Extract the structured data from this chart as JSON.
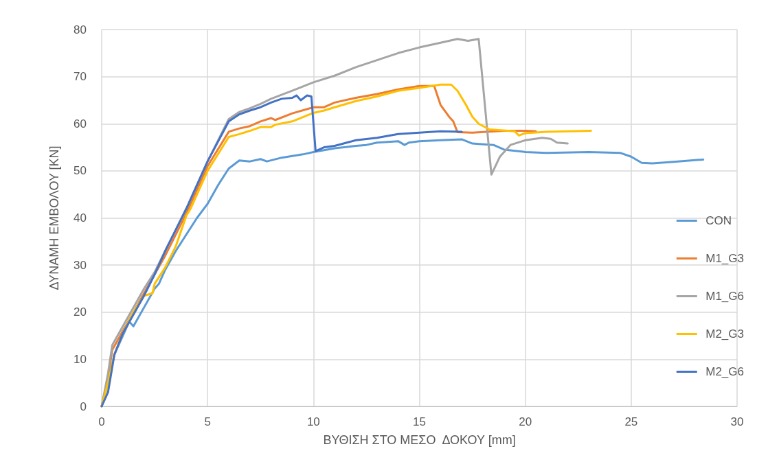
{
  "chart_data": {
    "type": "line",
    "xlabel": "ΒΥΘΙΣΗ ΣΤΟ ΜΕΣΟ  ΔΟΚΟΥ [mm]",
    "ylabel": "ΔΥΝΑΜΗ ΕΜΒΟΛΟΥ [KN]",
    "xlim": [
      0,
      30
    ],
    "xticks": [
      0,
      5,
      10,
      15,
      20,
      25,
      30
    ],
    "ylim": [
      0,
      80
    ],
    "yticks": [
      0,
      10,
      20,
      30,
      40,
      50,
      60,
      70,
      80
    ],
    "grid": true,
    "legend": "right",
    "marker": "none",
    "line_style": "solid",
    "series": [
      {
        "name": "CON",
        "color": "#5b9bd5",
        "x": [
          0,
          0.3,
          0.6,
          1,
          1.3,
          1.5,
          2,
          2.5,
          2.7,
          3,
          3.5,
          4,
          4.5,
          5,
          5.5,
          6,
          6.5,
          7,
          7.5,
          7.8,
          8.5,
          9.5,
          10,
          11,
          12,
          12.5,
          13,
          14,
          14.3,
          14.5,
          15,
          16,
          17,
          17.5,
          18.5,
          19,
          20,
          21,
          23,
          24.5,
          25,
          25.5,
          26,
          27,
          28.4
        ],
        "values": [
          0,
          5,
          11,
          15,
          18,
          17,
          21,
          25,
          26,
          29,
          33,
          36.5,
          40,
          43,
          47,
          50.5,
          52.2,
          52,
          52.5,
          52,
          52.8,
          53.5,
          54,
          54.8,
          55.3,
          55.5,
          56,
          56.3,
          55.5,
          56,
          56.3,
          56.5,
          56.7,
          55.8,
          55.5,
          54.5,
          54,
          53.8,
          54,
          53.8,
          53,
          51.7,
          51.6,
          51.9,
          52.4
        ]
      },
      {
        "name": "M1_G3",
        "color": "#ed7d31",
        "x": [
          0,
          0.3,
          0.5,
          1,
          1.5,
          2,
          2.5,
          3,
          4,
          5,
          6,
          6.5,
          7,
          7.5,
          8,
          8.2,
          9,
          10,
          10.5,
          11,
          12,
          13,
          14,
          15,
          15.7,
          16,
          16.4,
          16.6,
          16.8,
          17.5,
          19,
          20,
          20.5
        ],
        "values": [
          0,
          6,
          12,
          16,
          20,
          24,
          28,
          32,
          41,
          51,
          58.3,
          59,
          59.5,
          60.5,
          61.2,
          60.8,
          62.2,
          63.5,
          63.5,
          64.5,
          65.5,
          66.3,
          67.3,
          68,
          68,
          64,
          61.5,
          60.5,
          58.2,
          58.1,
          58.5,
          58.5,
          58.4
        ]
      },
      {
        "name": "M1_G6",
        "color": "#a5a5a5",
        "x": [
          0,
          0.3,
          0.5,
          1,
          1.5,
          2,
          2.5,
          3,
          4,
          5,
          6,
          6.5,
          7,
          7.5,
          8,
          9,
          10,
          11,
          12,
          13,
          14,
          15,
          16,
          16.8,
          17.3,
          17.8,
          18.4,
          18.8,
          19.3,
          20,
          20.8,
          21.2,
          21.5,
          22
        ],
        "values": [
          0,
          7,
          13,
          17,
          21,
          25,
          28.5,
          33,
          42,
          52,
          61,
          62.5,
          63.3,
          64.2,
          65.3,
          67,
          68.8,
          70.2,
          72,
          73.5,
          75,
          76.2,
          77.2,
          78,
          77.6,
          78,
          49.2,
          53,
          55.5,
          56.5,
          57,
          56.8,
          56,
          55.8
        ]
      },
      {
        "name": "M2_G3",
        "color": "#ffc000",
        "x": [
          0,
          0.3,
          0.6,
          1,
          1.5,
          2,
          2.4,
          2.5,
          3,
          3.5,
          4,
          4.2,
          5,
          6,
          6.5,
          7,
          7.5,
          8,
          8.2,
          9,
          10,
          10.5,
          11,
          12,
          13,
          14,
          15,
          16,
          16.5,
          16.8,
          17.2,
          17.5,
          17.8,
          18.3,
          19.5,
          19.7,
          20,
          21,
          23.1
        ],
        "values": [
          0,
          5,
          11,
          15.5,
          20,
          23.5,
          24,
          26,
          29.5,
          34,
          40.5,
          42,
          50,
          57.2,
          57.8,
          58.5,
          59.3,
          59.3,
          59.8,
          60.5,
          62.3,
          62.8,
          63.5,
          64.8,
          65.8,
          67,
          67.6,
          68.3,
          68.3,
          67,
          64,
          61.5,
          60,
          58.8,
          58.4,
          57.5,
          58,
          58.3,
          58.5
        ]
      },
      {
        "name": "M2_G6",
        "color": "#4472c4",
        "x": [
          0,
          0.3,
          0.6,
          1,
          1.5,
          2,
          2.5,
          3,
          4,
          5,
          6,
          6.5,
          7,
          7.5,
          8,
          8.5,
          9,
          9.2,
          9.4,
          9.7,
          9.9,
          10.1,
          10.5,
          11,
          12,
          13,
          14,
          15,
          16,
          17
        ],
        "values": [
          0,
          3,
          11,
          15.5,
          19.5,
          23.5,
          28,
          33,
          42,
          52,
          60.5,
          62,
          62.8,
          63.5,
          64.5,
          65.3,
          65.5,
          66,
          65,
          66,
          65.8,
          54.2,
          55,
          55.3,
          56.5,
          57,
          57.8,
          58.1,
          58.4,
          58.3
        ]
      }
    ]
  }
}
